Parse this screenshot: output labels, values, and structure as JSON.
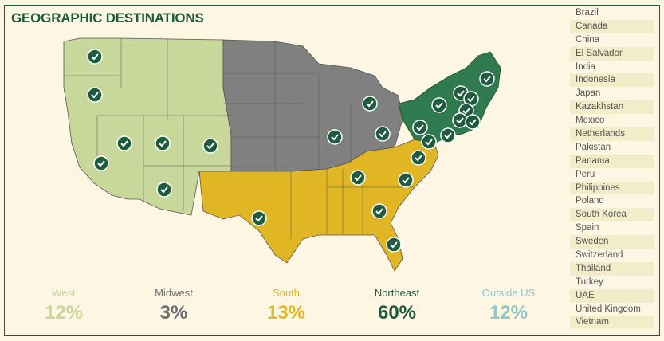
{
  "title": "GEOGRAPHIC DESTINATIONS",
  "colors": {
    "west": "#c8d89a",
    "midwest": "#808080",
    "south": "#e0b624",
    "northeast": "#2f7a4e",
    "outside": "#8fc6c8",
    "checkmark_fill": "#1f5c3f",
    "border": "#1f5c3f"
  },
  "regions": [
    {
      "name": "West",
      "percent": "12%",
      "color": "#c8d89a"
    },
    {
      "name": "Midwest",
      "percent": "3%",
      "color": "#6e6e6e"
    },
    {
      "name": "South",
      "percent": "13%",
      "color": "#e0b624"
    },
    {
      "name": "Northeast",
      "percent": "60%",
      "color": "#1f5c3f"
    },
    {
      "name": "Outside US",
      "percent": "12%",
      "color": "#8fc6c8"
    }
  ],
  "countries": [
    "Brazil",
    "Canada",
    "China",
    "El Salvador",
    "India",
    "Indonesia",
    "Japan",
    "Kazakhstan",
    "Mexico",
    "Netherlands",
    "Pakistan",
    "Panama",
    "Peru",
    "Philippines",
    "Poland",
    "South Korea",
    "Spain",
    "Sweden",
    "Switzerland",
    "Thailand",
    "Turkey",
    "UAE",
    "United Kingdom",
    "Vietnam"
  ],
  "map_icon": "check-circle-icon"
}
